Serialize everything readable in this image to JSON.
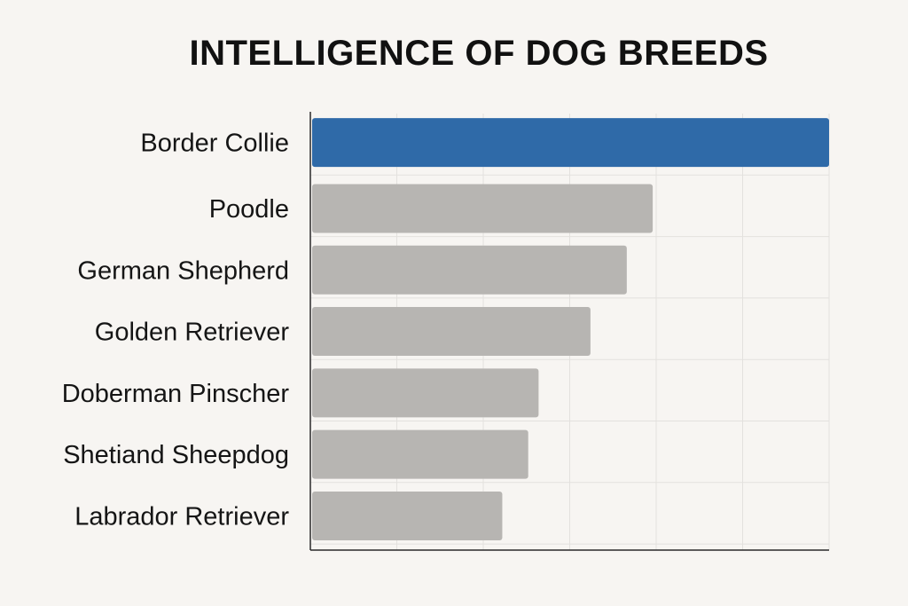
{
  "chart_data": {
    "type": "bar",
    "orientation": "horizontal",
    "title": "INTELLIGENCE OF DOG BREEDS",
    "xlabel": "",
    "ylabel": "",
    "categories": [
      "Border Collie",
      "Poodle",
      "German Shepherd",
      "Golden Retriever",
      "Doberman Pinscher",
      "Shetiand Sheepdog",
      "Labrador Retriever"
    ],
    "values": [
      100,
      66,
      61,
      54,
      44,
      42,
      37
    ],
    "xlim": [
      0,
      100
    ],
    "grid": true,
    "highlight_index": 0,
    "colors": {
      "highlight": "#2f6aa8",
      "default": "#b7b5b2",
      "grid": "#e3e1de",
      "axis": "#2a2a2a"
    }
  }
}
